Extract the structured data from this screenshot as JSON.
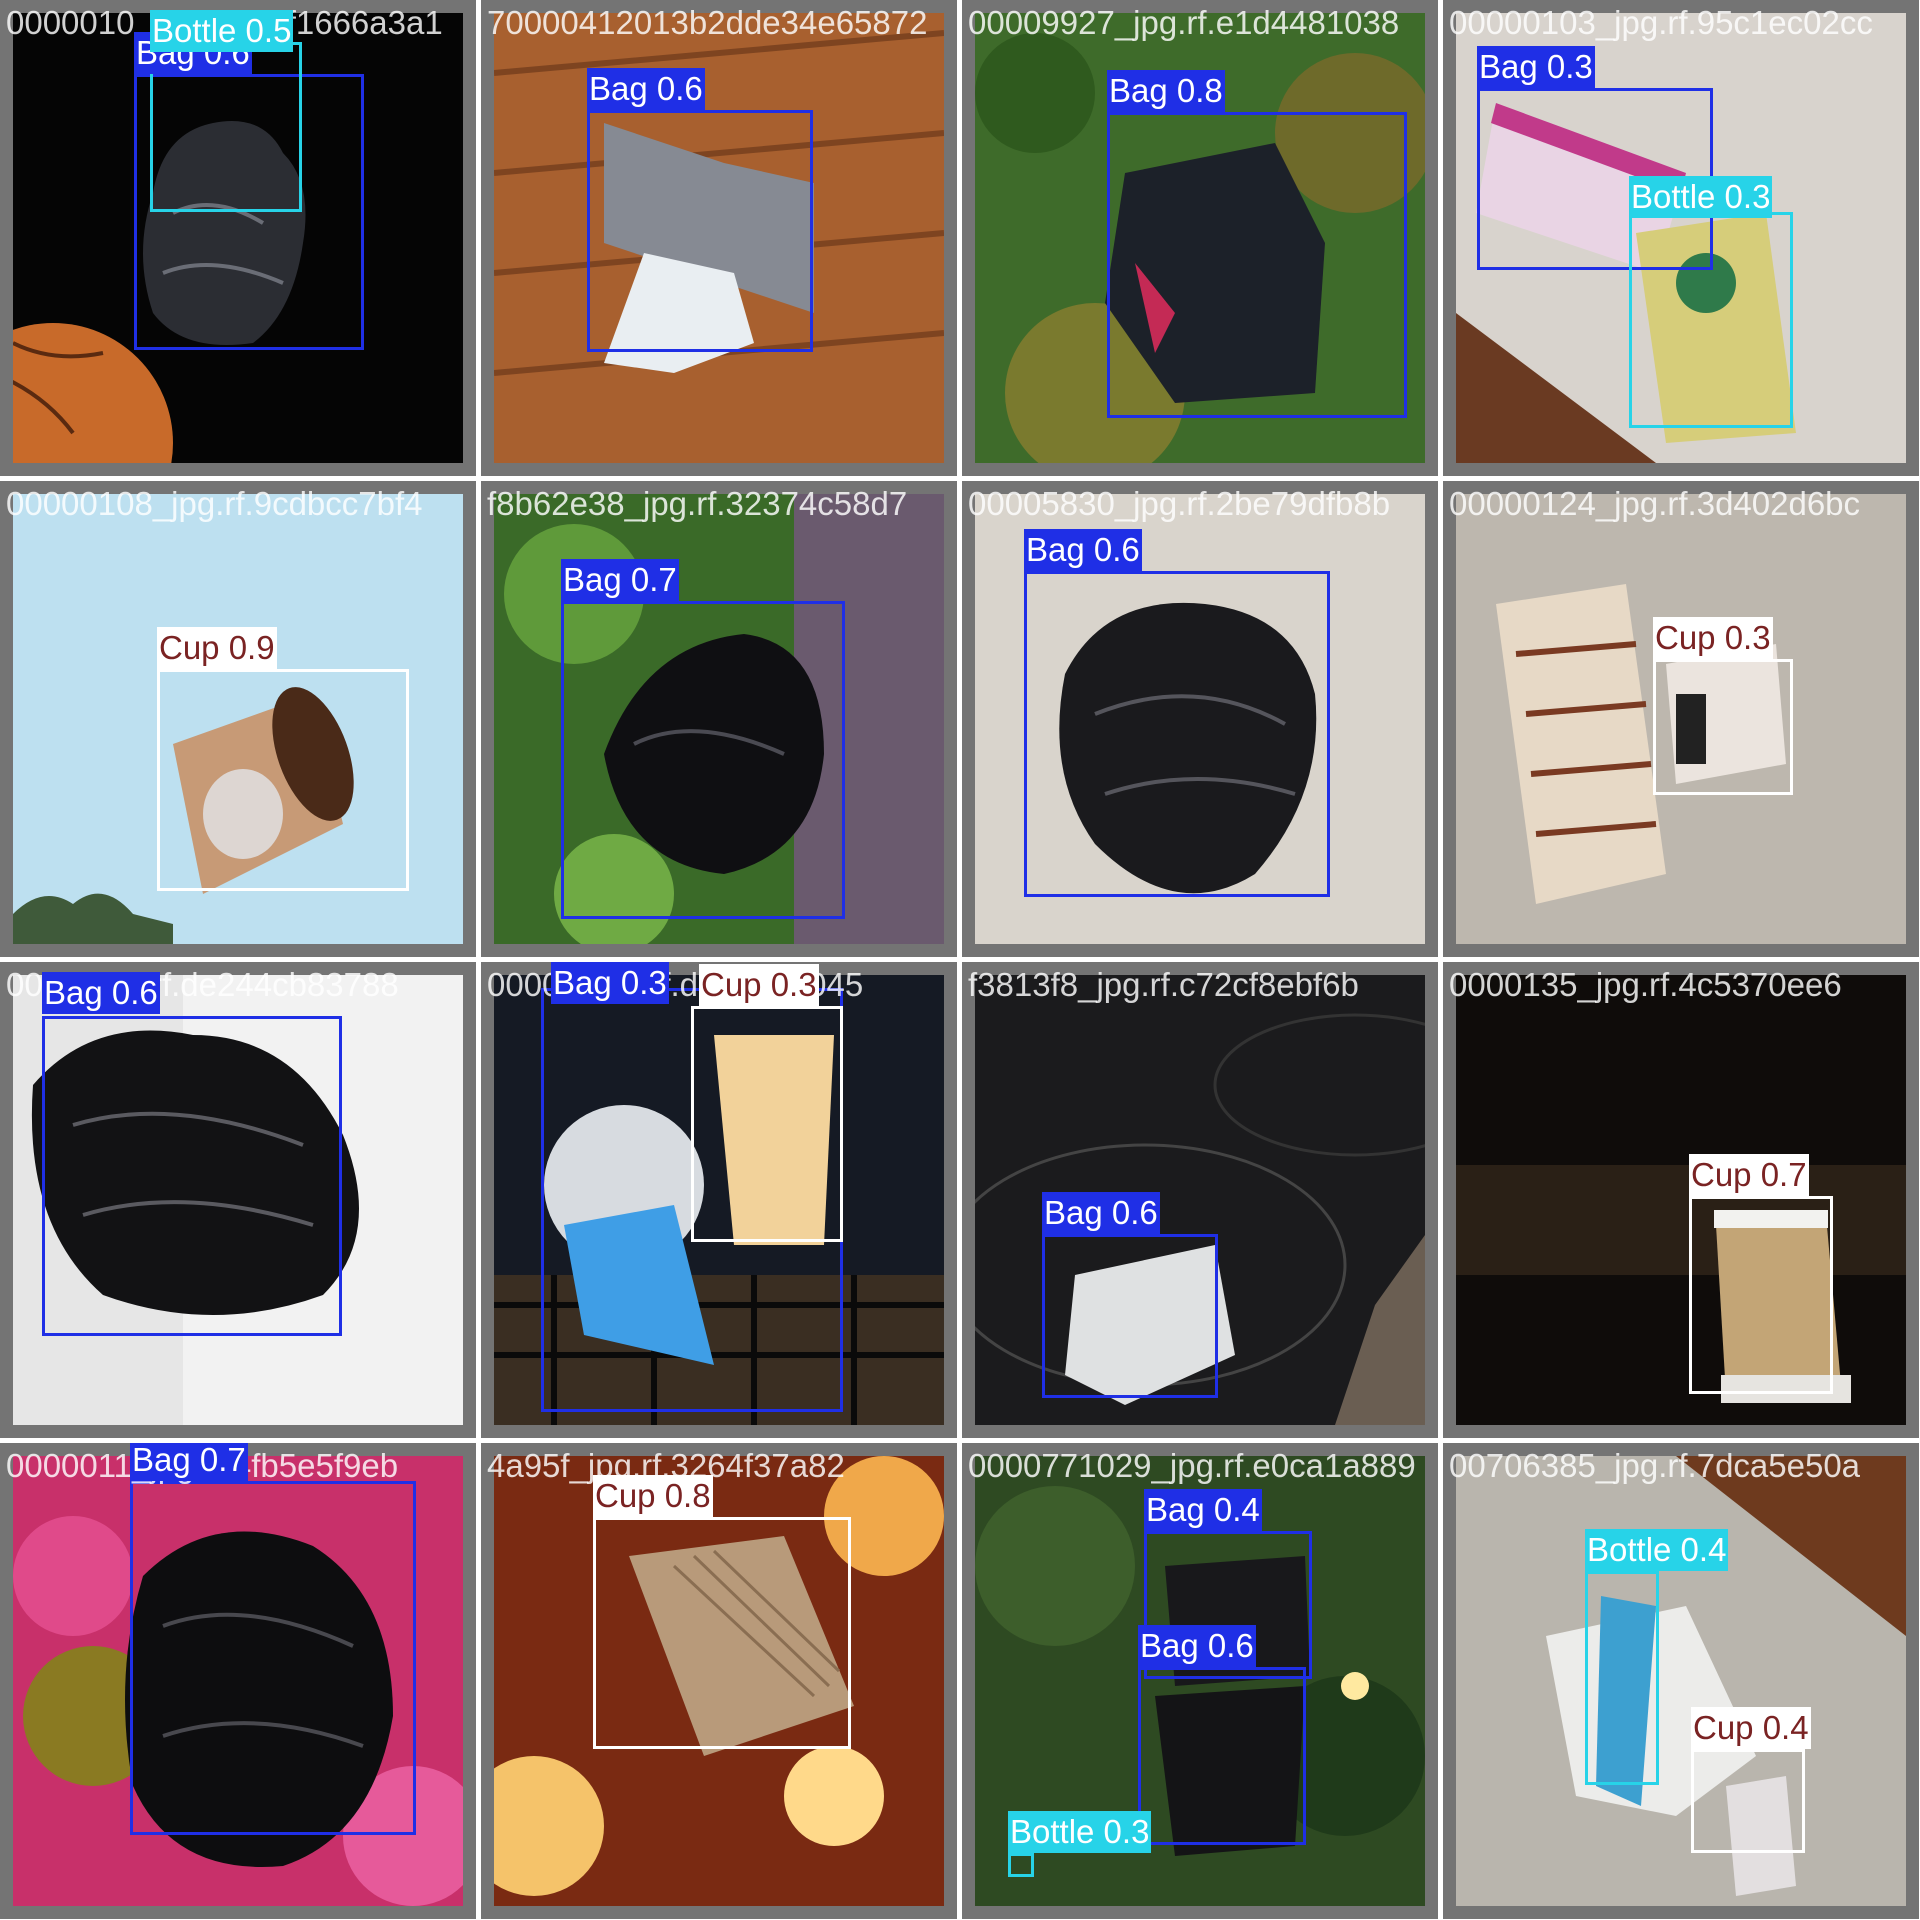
{
  "mosaic": {
    "tiles": [
      {
        "filename": "0000010_jpg.rf.8ccf1666a3a1",
        "detections": [
          {
            "label": "Bag 0.6",
            "class": "Bag"
          },
          {
            "label": "Bottle 0.5",
            "class": "Bottle"
          }
        ]
      },
      {
        "filename": "70000412013b2dde34e65872",
        "detections": [
          {
            "label": "Bag 0.6",
            "class": "Bag"
          }
        ]
      },
      {
        "filename": "00009927_jpg.rf.e1d4481038",
        "detections": [
          {
            "label": "Bag 0.8",
            "class": "Bag"
          }
        ]
      },
      {
        "filename": "00000103_jpg.rf.95c1ec02cc",
        "detections": [
          {
            "label": "Bag 0.3",
            "class": "Bag"
          },
          {
            "label": "Bottle 0.3",
            "class": "Bottle"
          }
        ]
      },
      {
        "filename": "00000108_jpg.rf.9cdbcc7bf4",
        "detections": [
          {
            "label": "Cup 0.9",
            "class": "Cup"
          }
        ]
      },
      {
        "filename": "f8b62e38_jpg.rf.32374c58d7",
        "detections": [
          {
            "label": "Bag 0.7",
            "class": "Bag"
          }
        ]
      },
      {
        "filename": "00005830_jpg.rf.2be79dfb8b",
        "detections": [
          {
            "label": "Bag 0.6",
            "class": "Bag"
          }
        ]
      },
      {
        "filename": "00000124_jpg.rf.3d402d6bc",
        "detections": [
          {
            "label": "Cup 0.3",
            "class": "Cup"
          }
        ]
      },
      {
        "filename": "0000_jpg.rf.de244cb83788",
        "detections": [
          {
            "label": "Bag 0.6",
            "class": "Bag"
          }
        ]
      },
      {
        "filename": "00000_jpg.rf.d22107e045",
        "detections": [
          {
            "label": "Bag 0.3",
            "class": "Bag"
          },
          {
            "label": "Cup 0.3",
            "class": "Cup"
          }
        ]
      },
      {
        "filename": "f3813f8_jpg.rf.c72cf8ebf6b",
        "detections": [
          {
            "label": "Bag 0.6",
            "class": "Bag"
          }
        ]
      },
      {
        "filename": "0000135_jpg.rf.4c5370ee6",
        "detections": [
          {
            "label": "Cup 0.7",
            "class": "Cup"
          }
        ]
      },
      {
        "filename": "0000011_jpg.rf.4fb5e5f9eb",
        "detections": [
          {
            "label": "Bag 0.7",
            "class": "Bag"
          }
        ]
      },
      {
        "filename": "4a95f_jpg.rf.3264f37a82",
        "detections": [
          {
            "label": "Cup 0.8",
            "class": "Cup"
          }
        ]
      },
      {
        "filename": "0000771029_jpg.rf.e0ca1a889",
        "detections": [
          {
            "label": "Bag 0.4",
            "class": "Bag"
          },
          {
            "label": "Bag 0.6",
            "class": "Bag"
          },
          {
            "label": "Bottle 0.3",
            "class": "Bottle"
          }
        ]
      },
      {
        "filename": "00706385_jpg.rf.7dca5e50a",
        "detections": [
          {
            "label": "Bottle 0.4",
            "class": "Bottle"
          },
          {
            "label": "Cup 0.4",
            "class": "Cup"
          }
        ]
      }
    ]
  }
}
